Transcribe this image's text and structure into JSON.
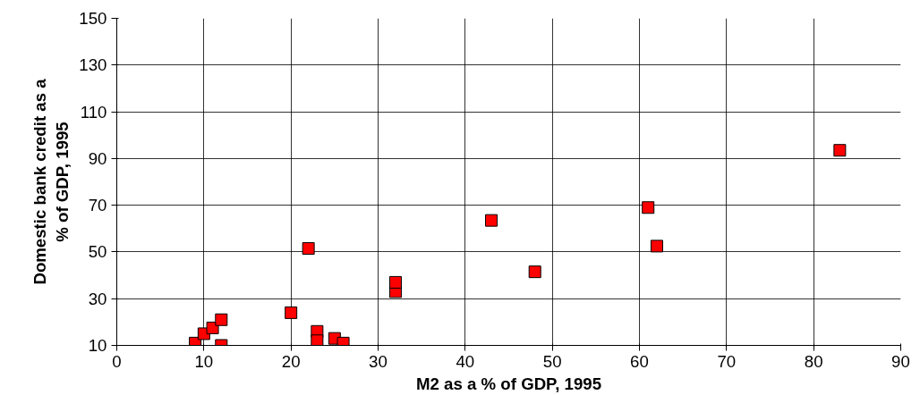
{
  "chart_data": {
    "type": "scatter",
    "xlabel": "M2 as a % of GDP, 1995",
    "ylabel": "Domestic bank credit as a\n% of GDP, 1995",
    "x": [
      9,
      10,
      11,
      12,
      12,
      20,
      22,
      23,
      23,
      25,
      26,
      32,
      32,
      43,
      48,
      61,
      62,
      83
    ],
    "series": [
      {
        "color": "#ff0000",
        "values": [
          11,
          15,
          17.5,
          21,
          10,
          24,
          51.5,
          16,
          12,
          13,
          11,
          33,
          37,
          63.5,
          41.5,
          69,
          52.5,
          93.5
        ]
      }
    ],
    "xlim": [
      0,
      90
    ],
    "xticks": [
      0,
      10,
      20,
      30,
      40,
      50,
      60,
      70,
      80,
      90
    ],
    "ylim": [
      10,
      150
    ],
    "yticks": [
      10,
      30,
      50,
      70,
      90,
      110,
      130,
      150
    ],
    "grid": true,
    "marker": "square"
  }
}
